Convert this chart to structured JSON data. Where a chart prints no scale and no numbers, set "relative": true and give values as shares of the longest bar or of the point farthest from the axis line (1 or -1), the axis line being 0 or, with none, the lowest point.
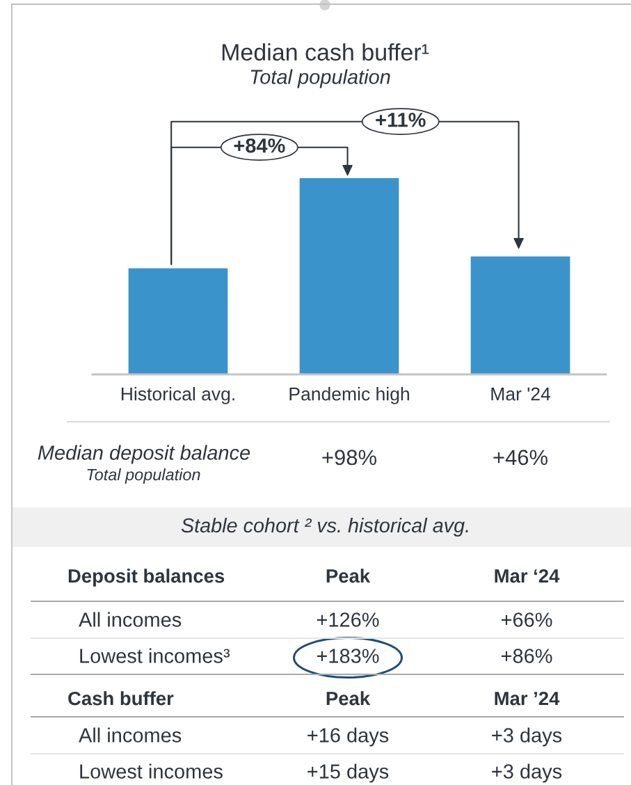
{
  "chart_data": [
    {
      "type": "bar",
      "title": "Median cash buffer¹",
      "subtitle": "Total population",
      "categories": [
        "Historical avg.",
        "Pandemic high",
        "Mar '24"
      ],
      "values": [
        0.54,
        1,
        0.6
      ],
      "relative": true,
      "color": "#3b93cc",
      "annotations": [
        "+84%",
        "+11%",
        "Median deposit balance",
        "Total population",
        "+98%",
        "+46%"
      ]
    },
    {
      "type": "other",
      "title": "Stable cohort ² vs. historical avg."
    },
    {
      "type": "other",
      "annotations": [
        "Deposit balances",
        "Peak",
        "Mar ‘24",
        "All incomes",
        "+126%",
        "+66%",
        "Lowest incomes³",
        "+183%",
        "+86%"
      ]
    },
    {
      "type": "other",
      "annotations": [
        "Cash buffer",
        "Peak",
        "Mar ’24",
        "All incomes",
        "+16 days",
        "+3 days",
        "Lowest incomes",
        "+15 days",
        "+3 days"
      ]
    }
  ]
}
